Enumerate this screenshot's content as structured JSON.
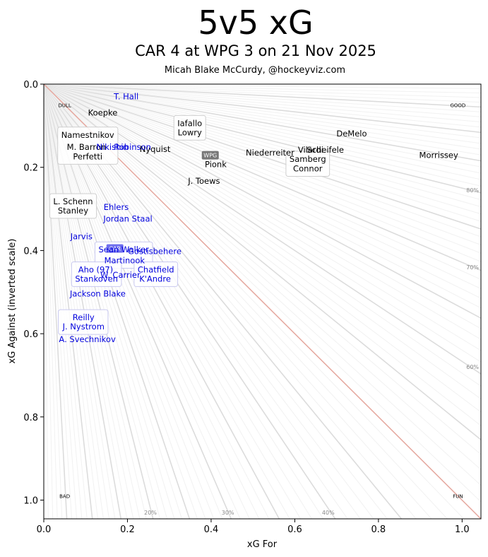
{
  "title": "5v5 xG",
  "subtitle": "CAR 4 at WPG 3 on 21 Nov 2025",
  "credit": "Micah Blake McCurdy, @hockeyviz.com",
  "chart_data": {
    "type": "scatter",
    "xlabel": "xG For",
    "ylabel": "xG Against (inverted scale)",
    "xlim": [
      0,
      1.045
    ],
    "ylim": [
      1.045,
      0
    ],
    "xticks": [
      0.0,
      0.2,
      0.4,
      0.6,
      0.8,
      1.0
    ],
    "yticks": [
      0.0,
      0.2,
      0.4,
      0.6,
      0.8,
      1.0
    ],
    "xtick_labels": [
      "0.0",
      "0.2",
      "0.4",
      "0.6",
      "0.8",
      "1.0"
    ],
    "ytick_labels": [
      "0.0",
      "0.2",
      "0.4",
      "0.6",
      "0.8",
      "1.0"
    ],
    "corner_labels": [
      {
        "text": "DULL",
        "x": 0.05,
        "y": 0.05
      },
      {
        "text": "GOOD",
        "x": 0.99,
        "y": 0.05
      },
      {
        "text": "BAD",
        "x": 0.05,
        "y": 0.99
      },
      {
        "text": "FUN",
        "x": 0.99,
        "y": 0.99
      }
    ],
    "percent_labels": [
      {
        "text": "20%",
        "x": 0.255,
        "y": 1.03
      },
      {
        "text": "30%",
        "x": 0.44,
        "y": 1.03
      },
      {
        "text": "40%",
        "x": 0.68,
        "y": 1.03
      },
      {
        "text": "80%",
        "x": 1.025,
        "y": 0.255
      },
      {
        "text": "70%",
        "x": 1.025,
        "y": 0.44
      },
      {
        "text": "60%",
        "x": 1.025,
        "y": 0.68
      }
    ],
    "series": [
      {
        "name": "WPG",
        "color": "#000000",
        "team_marker": {
          "label": "WPG",
          "x": 0.398,
          "y": 0.171
        },
        "points": [
          {
            "label": "Koepke",
            "x": 0.141,
            "y": 0.069,
            "boxed": false
          },
          {
            "label": "Namestnikov",
            "x": 0.105,
            "y": 0.122,
            "boxed": true,
            "group": "w1"
          },
          {
            "label": "M. Barron",
            "x": 0.102,
            "y": 0.151,
            "boxed": true,
            "group": "w1"
          },
          {
            "label": "Perfetti",
            "x": 0.105,
            "y": 0.174,
            "boxed": true,
            "group": "w1"
          },
          {
            "label": "Iafallo",
            "x": 0.349,
            "y": 0.094,
            "boxed": true,
            "group": "w2"
          },
          {
            "label": "Lowry",
            "x": 0.349,
            "y": 0.116,
            "boxed": true,
            "group": "w2"
          },
          {
            "label": "Nyquist",
            "x": 0.266,
            "y": 0.156,
            "boxed": false
          },
          {
            "label": "Pionk",
            "x": 0.411,
            "y": 0.193,
            "boxed": false
          },
          {
            "label": "Niederreiter",
            "x": 0.541,
            "y": 0.165,
            "boxed": false
          },
          {
            "label": "Vilardi",
            "x": 0.638,
            "y": 0.158,
            "boxed": false
          },
          {
            "label": "Scheifele",
            "x": 0.673,
            "y": 0.158,
            "boxed": false
          },
          {
            "label": "Samberg",
            "x": 0.631,
            "y": 0.18,
            "boxed": true,
            "group": "w3"
          },
          {
            "label": "Connor",
            "x": 0.631,
            "y": 0.203,
            "boxed": true,
            "group": "w3"
          },
          {
            "label": "DeMelo",
            "x": 0.736,
            "y": 0.119,
            "boxed": false
          },
          {
            "label": "Morrissey",
            "x": 0.944,
            "y": 0.171,
            "boxed": false
          },
          {
            "label": "J. Toews",
            "x": 0.383,
            "y": 0.233,
            "boxed": false
          },
          {
            "label": "L. Schenn",
            "x": 0.07,
            "y": 0.282,
            "boxed": true,
            "group": "w4"
          },
          {
            "label": "Stanley",
            "x": 0.07,
            "y": 0.304,
            "boxed": true,
            "group": "w4"
          }
        ]
      },
      {
        "name": "CAR",
        "color": "#0000dd",
        "team_marker": {
          "label": "CAR",
          "x": 0.17,
          "y": 0.395
        },
        "points": [
          {
            "label": "T. Hall",
            "x": 0.197,
            "y": 0.03,
            "boxed": false
          },
          {
            "label": "Nikishin",
            "x": 0.164,
            "y": 0.151,
            "boxed": false
          },
          {
            "label": "Robinson",
            "x": 0.212,
            "y": 0.151,
            "boxed": false
          },
          {
            "label": "Ehlers",
            "x": 0.173,
            "y": 0.296,
            "boxed": false
          },
          {
            "label": "Jordan Staal",
            "x": 0.201,
            "y": 0.324,
            "boxed": false
          },
          {
            "label": "Jarvis",
            "x": 0.09,
            "y": 0.366,
            "boxed": false
          },
          {
            "label": "Sean Walker",
            "x": 0.191,
            "y": 0.398,
            "boxed": true,
            "group": "c1"
          },
          {
            "label": "Gostisbehere",
            "x": 0.265,
            "y": 0.402,
            "boxed": false
          },
          {
            "label": "Martinook",
            "x": 0.193,
            "y": 0.424,
            "boxed": true,
            "group": "c1"
          },
          {
            "label": "Aho (97)",
            "x": 0.124,
            "y": 0.446,
            "boxed": true,
            "group": "c2"
          },
          {
            "label": "Stankoven",
            "x": 0.126,
            "y": 0.468,
            "boxed": true,
            "group": "c2"
          },
          {
            "label": "W. Carrier",
            "x": 0.183,
            "y": 0.459,
            "boxed": false
          },
          {
            "label": "Chatfield",
            "x": 0.268,
            "y": 0.446,
            "boxed": true,
            "group": "c3"
          },
          {
            "label": "K'Andre",
            "x": 0.266,
            "y": 0.468,
            "boxed": true,
            "group": "c3"
          },
          {
            "label": "Jackson Blake",
            "x": 0.129,
            "y": 0.504,
            "boxed": false
          },
          {
            "label": "Reilly",
            "x": 0.095,
            "y": 0.561,
            "boxed": true,
            "group": "c4"
          },
          {
            "label": "J. Nystrom",
            "x": 0.095,
            "y": 0.583,
            "boxed": true,
            "group": "c4"
          },
          {
            "label": "A. Svechnikov",
            "x": 0.104,
            "y": 0.613,
            "boxed": false
          }
        ]
      }
    ]
  }
}
